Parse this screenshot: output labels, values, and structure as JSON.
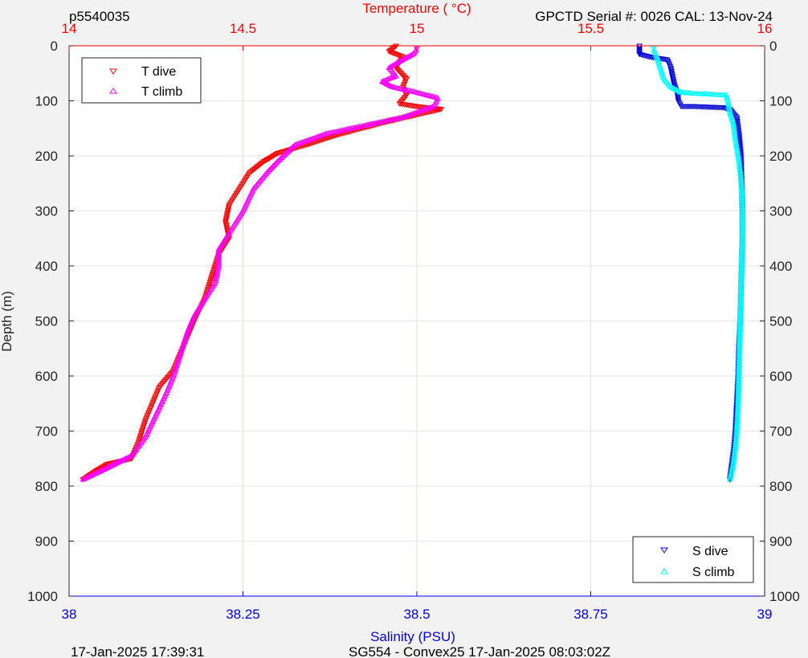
{
  "header": {
    "profile_id": "p5540035",
    "serial": "GPCTD Serial #: 0026 CAL: 13-Nov-24"
  },
  "footer": {
    "left": "17-Jan-2025 17:39:31",
    "center": "SG554 - Convex25 17-Jan-2025 08:03:02Z"
  },
  "colors": {
    "temperature_axis": "#ff0000",
    "salinity_axis": "#0000ff",
    "t_dive": "#ff0000",
    "t_climb": "#ff00ff",
    "s_dive": "#0000dd",
    "s_climb": "#00ffff"
  },
  "chart_data": {
    "type": "scatter",
    "y_axis": {
      "label": "Depth (m)",
      "range": [
        1000,
        0
      ],
      "reversed": true,
      "ticks": [
        0,
        100,
        200,
        300,
        400,
        500,
        600,
        700,
        800,
        900,
        1000
      ]
    },
    "temperature_axis": {
      "label": "Temperature (    °C)",
      "position": "top",
      "range": [
        14,
        16
      ],
      "ticks": [
        14,
        14.5,
        15,
        15.5,
        16
      ],
      "tick_labels": [
        "14",
        "14.5",
        "15",
        "15.5",
        "16"
      ]
    },
    "salinity_axis": {
      "label": "Salinity (PSU)",
      "position": "bottom",
      "range": [
        38,
        39
      ],
      "ticks": [
        38,
        38.25,
        38.5,
        38.75,
        39
      ],
      "tick_labels": [
        "38",
        "38.25",
        "38.5",
        "38.75",
        "39"
      ]
    },
    "grid": true,
    "legends": [
      {
        "position": "top-left",
        "entries": [
          "T dive",
          "T climb"
        ]
      },
      {
        "position": "bottom-right",
        "entries": [
          "S dive",
          "S climb"
        ]
      }
    ],
    "series": [
      {
        "name": "T dive",
        "axis": "temperature",
        "marker": "triangle-down",
        "points": [
          [
            14.94,
            0
          ],
          [
            14.92,
            10
          ],
          [
            14.96,
            20
          ],
          [
            14.94,
            40
          ],
          [
            14.97,
            60
          ],
          [
            14.96,
            75
          ],
          [
            14.97,
            90
          ],
          [
            14.95,
            105
          ],
          [
            15.0,
            110
          ],
          [
            15.07,
            115
          ],
          [
            15.0,
            125
          ],
          [
            14.9,
            140
          ],
          [
            14.78,
            160
          ],
          [
            14.68,
            180
          ],
          [
            14.6,
            195
          ],
          [
            14.56,
            210
          ],
          [
            14.52,
            230
          ],
          [
            14.49,
            260
          ],
          [
            14.46,
            290
          ],
          [
            14.45,
            320
          ],
          [
            14.46,
            350
          ],
          [
            14.43,
            380
          ],
          [
            14.41,
            420
          ],
          [
            14.39,
            460
          ],
          [
            14.36,
            500
          ],
          [
            14.34,
            530
          ],
          [
            14.32,
            560
          ],
          [
            14.3,
            590
          ],
          [
            14.26,
            620
          ],
          [
            14.24,
            650
          ],
          [
            14.22,
            680
          ],
          [
            14.2,
            720
          ],
          [
            14.18,
            750
          ],
          [
            14.11,
            760
          ],
          [
            14.07,
            775
          ],
          [
            14.04,
            788
          ]
        ]
      },
      {
        "name": "T climb",
        "axis": "temperature",
        "marker": "triangle-up",
        "points": [
          [
            14.04,
            788
          ],
          [
            14.1,
            770
          ],
          [
            14.18,
            745
          ],
          [
            14.22,
            710
          ],
          [
            14.25,
            670
          ],
          [
            14.28,
            630
          ],
          [
            14.3,
            600
          ],
          [
            14.32,
            560
          ],
          [
            14.34,
            520
          ],
          [
            14.36,
            490
          ],
          [
            14.39,
            460
          ],
          [
            14.42,
            430
          ],
          [
            14.43,
            400
          ],
          [
            14.43,
            370
          ],
          [
            14.46,
            340
          ],
          [
            14.5,
            300
          ],
          [
            14.53,
            260
          ],
          [
            14.57,
            230
          ],
          [
            14.6,
            210
          ],
          [
            14.65,
            180
          ],
          [
            14.74,
            160
          ],
          [
            14.85,
            145
          ],
          [
            14.96,
            130
          ],
          [
            15.05,
            110
          ],
          [
            15.06,
            95
          ],
          [
            15.0,
            85
          ],
          [
            14.93,
            75
          ],
          [
            14.9,
            65
          ],
          [
            14.94,
            55
          ],
          [
            14.92,
            40
          ],
          [
            14.96,
            25
          ],
          [
            14.99,
            15
          ],
          [
            15.0,
            5
          ]
        ]
      },
      {
        "name": "S dive",
        "axis": "salinity",
        "marker": "triangle-down",
        "points": [
          [
            38.82,
            0
          ],
          [
            38.82,
            15
          ],
          [
            38.835,
            20
          ],
          [
            38.86,
            25
          ],
          [
            38.865,
            40
          ],
          [
            38.87,
            70
          ],
          [
            38.875,
            90
          ],
          [
            38.876,
            100
          ],
          [
            38.88,
            110
          ],
          [
            38.9,
            110
          ],
          [
            38.94,
            112
          ],
          [
            38.95,
            115
          ],
          [
            38.96,
            130
          ],
          [
            38.963,
            160
          ],
          [
            38.966,
            200
          ],
          [
            38.967,
            250
          ],
          [
            38.968,
            300
          ],
          [
            38.968,
            350
          ],
          [
            38.967,
            400
          ],
          [
            38.966,
            450
          ],
          [
            38.965,
            500
          ],
          [
            38.963,
            550
          ],
          [
            38.962,
            600
          ],
          [
            38.96,
            650
          ],
          [
            38.958,
            700
          ],
          [
            38.956,
            730
          ],
          [
            38.953,
            760
          ],
          [
            38.95,
            788
          ]
        ]
      },
      {
        "name": "S climb",
        "axis": "salinity",
        "marker": "triangle-up",
        "points": [
          [
            38.95,
            788
          ],
          [
            38.955,
            760
          ],
          [
            38.958,
            730
          ],
          [
            38.96,
            700
          ],
          [
            38.962,
            650
          ],
          [
            38.963,
            600
          ],
          [
            38.964,
            550
          ],
          [
            38.965,
            500
          ],
          [
            38.966,
            450
          ],
          [
            38.967,
            400
          ],
          [
            38.968,
            350
          ],
          [
            38.968,
            300
          ],
          [
            38.967,
            260
          ],
          [
            38.965,
            230
          ],
          [
            38.962,
            200
          ],
          [
            38.958,
            170
          ],
          [
            38.955,
            140
          ],
          [
            38.95,
            120
          ],
          [
            38.947,
            100
          ],
          [
            38.945,
            90
          ],
          [
            38.9,
            87
          ],
          [
            38.88,
            85
          ],
          [
            38.865,
            75
          ],
          [
            38.855,
            60
          ],
          [
            38.85,
            40
          ],
          [
            38.845,
            20
          ],
          [
            38.84,
            5
          ]
        ]
      }
    ]
  }
}
